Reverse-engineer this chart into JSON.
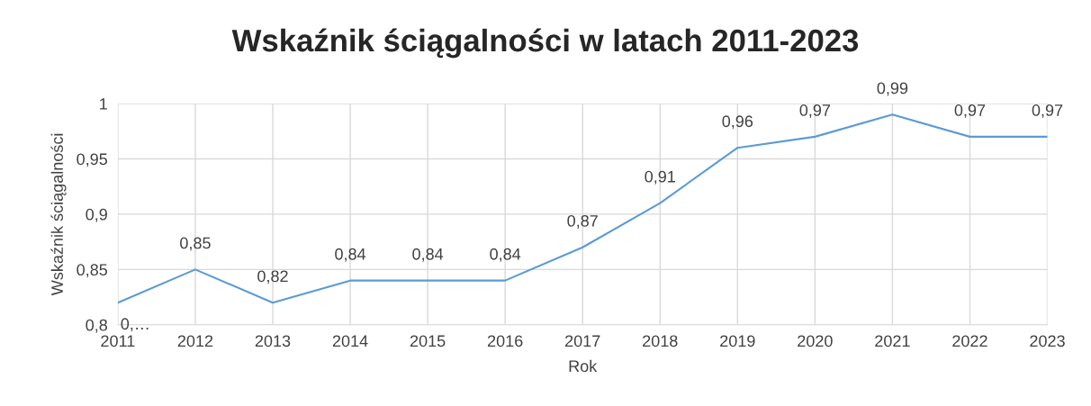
{
  "chart_data": {
    "type": "line",
    "title": "Wskaźnik ściągalności w latach 2011-2023",
    "xlabel": "Rok",
    "ylabel": "Wskaźnik ściągalności",
    "categories": [
      "2011",
      "2012",
      "2013",
      "2014",
      "2015",
      "2016",
      "2017",
      "2018",
      "2019",
      "2020",
      "2021",
      "2022",
      "2023"
    ],
    "series": [
      {
        "color": "#5b9bd5",
        "values": [
          0.82,
          0.85,
          0.82,
          0.84,
          0.84,
          0.84,
          0.87,
          0.91,
          0.96,
          0.97,
          0.99,
          0.97,
          0.97
        ],
        "value_labels": [
          "0,…",
          "0,85",
          "0,82",
          "0,84",
          "0,84",
          "0,84",
          "0,87",
          "0,91",
          "0,96",
          "0,97",
          "0,99",
          "0,97",
          "0,97"
        ]
      }
    ],
    "ylim": [
      0.8,
      1
    ],
    "yticks": [
      {
        "value": 0.8,
        "label": "0,8"
      },
      {
        "value": 0.85,
        "label": "0,85"
      },
      {
        "value": 0.9,
        "label": "0,9"
      },
      {
        "value": 0.95,
        "label": "0,95"
      },
      {
        "value": 1,
        "label": "1"
      }
    ],
    "grid": true,
    "marker": "none",
    "line_style": "solid"
  }
}
